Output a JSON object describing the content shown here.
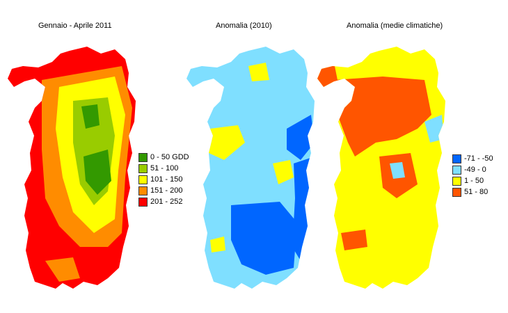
{
  "maps": [
    {
      "title": "Gennaio - Aprile 2011",
      "base_color": "#ff0000",
      "legend": [
        {
          "label": "0 - 50 GDD",
          "color": "#339900"
        },
        {
          "label": "51 - 100",
          "color": "#99cc00"
        },
        {
          "label": "101 - 150",
          "color": "#ffff00"
        },
        {
          "label": "151 - 200",
          "color": "#ff8c00"
        },
        {
          "label": "201 - 252",
          "color": "#ff0000"
        }
      ]
    },
    {
      "title": "Anomalia (2010)",
      "base_color": "#7fdfff",
      "legend": []
    },
    {
      "title": "Anomalia (medie climatiche)",
      "base_color": "#ffff00",
      "legend": [
        {
          "label": "-71 - -50",
          "color": "#0066ff"
        },
        {
          "label": "-49 - 0",
          "color": "#7fdfff"
        },
        {
          "label": "1 - 50",
          "color": "#ffff00"
        },
        {
          "label": "51 - 80",
          "color": "#ff5500"
        }
      ]
    }
  ]
}
